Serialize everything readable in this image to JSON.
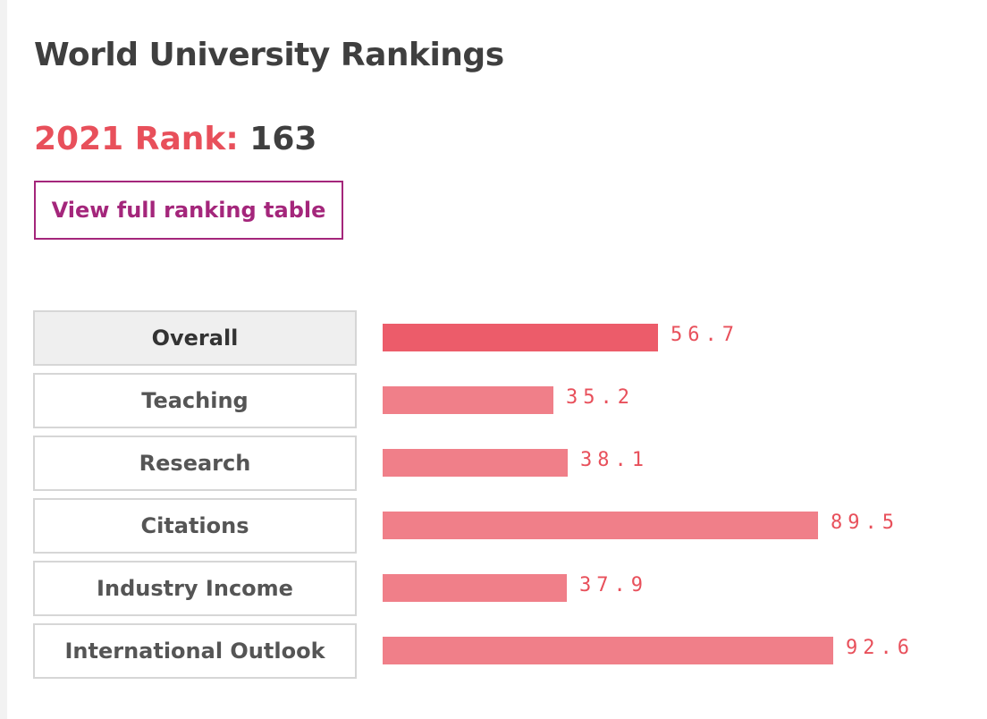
{
  "page": {
    "title": "World University Rankings",
    "rank_label": "2021 Rank:",
    "rank_value": "163",
    "view_button_label": "View full ranking table"
  },
  "colors": {
    "accent_red": "#e8505b",
    "button_purple": "#a4267b",
    "bar_active": "#ec5c6a",
    "bar_default": "#f07f89"
  },
  "chart_data": {
    "type": "bar",
    "categories": [
      "Overall",
      "Teaching",
      "Research",
      "Citations",
      "Industry Income",
      "International Outlook"
    ],
    "values": [
      56.7,
      35.2,
      38.1,
      89.5,
      37.9,
      92.6
    ],
    "value_labels": [
      "56.7",
      "35.2",
      "38.1",
      "89.5",
      "37.9",
      "92.6"
    ],
    "ylim": [
      0,
      100
    ],
    "active_category": "Overall",
    "orientation": "horizontal"
  }
}
